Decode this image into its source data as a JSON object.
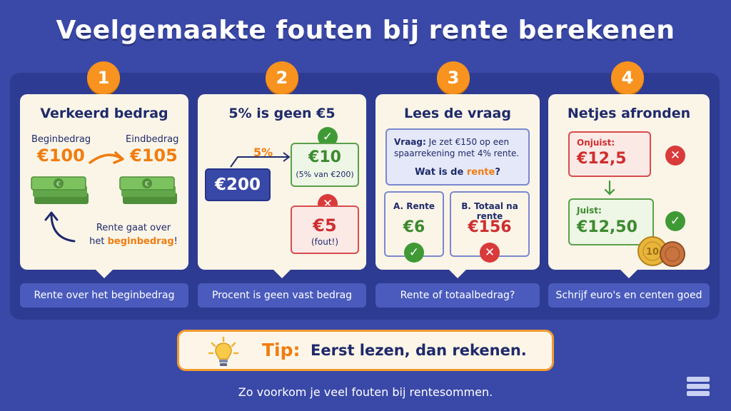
{
  "title": "Veelgemaakte fouten bij rente berekenen",
  "cards": [
    {
      "number": "1",
      "title": "Verkeerd bedrag",
      "begin_label": "Beginbedrag",
      "begin_value": "€100",
      "end_label": "Eindbedrag",
      "end_value": "€105",
      "note_part1": "Rente gaat over",
      "note_part2": "het ",
      "note_highlight": "beginbedrag",
      "note_end": "!",
      "caption": "Rente over het beginbedrag"
    },
    {
      "number": "2",
      "title": "5% is geen €5",
      "base_value": "€200",
      "percent": "5%",
      "correct_value": "€10",
      "correct_note": "(5% van €200)",
      "wrong_value": "€5",
      "wrong_note": "(fout!)",
      "caption": "Procent is geen vast bedrag"
    },
    {
      "number": "3",
      "title": "Lees de vraag",
      "question_label": "Vraag:",
      "question_text_1": "Je zet €150 op een",
      "question_text_2": "spaarrekening met 4% rente.",
      "question_ask": "Wat is de ",
      "question_highlight": "rente",
      "question_end": "?",
      "option_a_label": "A. Rente",
      "option_a_value": "€6",
      "option_b_label": "B. Totaal na rente",
      "option_b_value": "€156",
      "caption": "Rente of totaalbedrag?"
    },
    {
      "number": "4",
      "title": "Netjes afronden",
      "wrong_label": "Onjuist:",
      "wrong_value": "€12,5",
      "right_label": "Juist:",
      "right_value": "€12,50",
      "caption": "Schrijf euro's en centen goed"
    }
  ],
  "tip": {
    "label": "Tip:",
    "text": "Eerst lezen, dan rekenen."
  },
  "footer": "Zo voorkom je veel fouten bij rentesommen.",
  "colors": {
    "background": "#3a49a8",
    "accent": "#f7931e",
    "correct": "#3f9a35",
    "wrong": "#d93a3a"
  }
}
